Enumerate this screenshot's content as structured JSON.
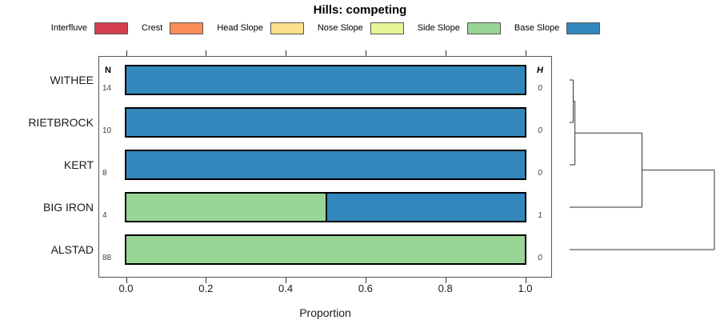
{
  "title": "Hills: competing",
  "chart_data": {
    "type": "bar",
    "variant": "horizontal-stacked-proportion",
    "title": "Hills: competing",
    "xlabel": "Proportion",
    "xlim": [
      0,
      1
    ],
    "grid": false,
    "legend_position": "top",
    "xticks": [
      {
        "value": 0.0,
        "label": "0.0"
      },
      {
        "value": 0.2,
        "label": "0.2"
      },
      {
        "value": 0.4,
        "label": "0.4"
      },
      {
        "value": 0.6,
        "label": "0.6"
      },
      {
        "value": 0.8,
        "label": "0.8"
      },
      {
        "value": 1.0,
        "label": "1.0"
      }
    ],
    "legend": [
      {
        "label": "Interfluve",
        "color": "#D53E4F"
      },
      {
        "label": "Crest",
        "color": "#FC8D59"
      },
      {
        "label": "Head Slope",
        "color": "#FEE08B"
      },
      {
        "label": "Nose Slope",
        "color": "#E6F598"
      },
      {
        "label": "Side Slope",
        "color": "#99D594"
      },
      {
        "label": "Base Slope",
        "color": "#3288BD"
      }
    ],
    "n_column_header": "N",
    "h_column_header": "H",
    "rows": [
      {
        "label": "WITHEE",
        "n": "14",
        "h": "0",
        "segments": [
          {
            "class": "Base Slope",
            "proportion": 1.0
          }
        ]
      },
      {
        "label": "RIETBROCK",
        "n": "10",
        "h": "0",
        "segments": [
          {
            "class": "Base Slope",
            "proportion": 1.0
          }
        ]
      },
      {
        "label": "KERT",
        "n": "8",
        "h": "0",
        "segments": [
          {
            "class": "Base Slope",
            "proportion": 1.0
          }
        ]
      },
      {
        "label": "BIG IRON",
        "n": "4",
        "h": "1",
        "segments": [
          {
            "class": "Side Slope",
            "proportion": 0.5
          },
          {
            "class": "Base Slope",
            "proportion": 0.5
          }
        ]
      },
      {
        "label": "ALSTAD",
        "n": "88",
        "h": "0",
        "segments": [
          {
            "class": "Side Slope",
            "proportion": 1.0
          }
        ]
      }
    ],
    "dendrogram": {
      "leaves": [
        "WITHEE",
        "RIETBROCK",
        "KERT",
        "BIG IRON",
        "ALSTAD"
      ],
      "merges": [
        {
          "a": "leaf:WITHEE",
          "b": "leaf:RIETBROCK",
          "height": 0.025
        },
        {
          "a": "merge:0",
          "b": "leaf:KERT",
          "height": 0.037
        },
        {
          "a": "merge:1",
          "b": "leaf:BIG IRON",
          "height": 0.5
        },
        {
          "a": "merge:2",
          "b": "leaf:ALSTAD",
          "height": 1.0
        }
      ],
      "line_color": "#333333"
    }
  }
}
